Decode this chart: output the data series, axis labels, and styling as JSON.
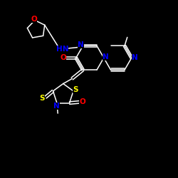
{
  "background": "#000000",
  "bond_color": "#ffffff",
  "atom_colors": {
    "O": "#ff0000",
    "N": "#0000ff",
    "S": "#ffff00",
    "H": "#ffffff",
    "C": "#ffffff"
  },
  "fs": 7.5,
  "figsize": [
    2.5,
    2.5
  ],
  "dpi": 100,
  "lw": 1.1,
  "xlim": [
    0,
    10
  ],
  "ylim": [
    0,
    10
  ]
}
